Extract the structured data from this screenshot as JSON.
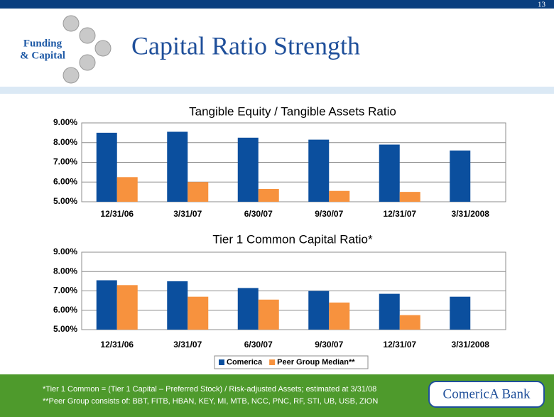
{
  "page_number": "13",
  "section": [
    "Funding",
    "& Capital"
  ],
  "title": "Capital Ratio Strength",
  "chart_data": [
    {
      "type": "bar",
      "title": "Tangible Equity / Tangible Assets Ratio",
      "categories": [
        "12/31/06",
        "3/31/07",
        "6/30/07",
        "9/30/07",
        "12/31/07",
        "3/31/2008"
      ],
      "series": [
        {
          "color": "#0b4f9e",
          "values": [
            8.5,
            8.55,
            8.25,
            8.15,
            7.9,
            7.6
          ]
        },
        {
          "color": "#f7923e",
          "values": [
            6.25,
            6.0,
            5.65,
            5.55,
            5.5,
            null
          ]
        }
      ],
      "ylim": [
        5,
        9
      ],
      "yticks": [
        {
          "value": 5,
          "label": "5.00%"
        },
        {
          "value": 6,
          "label": "6.00%"
        },
        {
          "value": 7,
          "label": "7.00%"
        },
        {
          "value": 8,
          "label": "8.00%"
        },
        {
          "value": 9,
          "label": "9.00%"
        }
      ],
      "grid": true,
      "legend": false
    },
    {
      "type": "bar",
      "title": "Tier 1 Common Capital Ratio*",
      "categories": [
        "12/31/06",
        "3/31/07",
        "6/30/07",
        "9/30/07",
        "12/31/07",
        "3/31/2008"
      ],
      "series": [
        {
          "name": "Comerica",
          "color": "#0b4f9e",
          "values": [
            7.55,
            7.5,
            7.15,
            7.0,
            6.85,
            6.7
          ]
        },
        {
          "name": "Peer Group Median**",
          "color": "#f7923e",
          "values": [
            7.3,
            6.7,
            6.55,
            6.4,
            5.75,
            null
          ]
        }
      ],
      "ylim": [
        5,
        9
      ],
      "yticks": [
        {
          "value": 5,
          "label": "5.00%"
        },
        {
          "value": 6,
          "label": "6.00%"
        },
        {
          "value": 7,
          "label": "7.00%"
        },
        {
          "value": 8,
          "label": "8.00%"
        },
        {
          "value": 9,
          "label": "9.00%"
        }
      ],
      "grid": true,
      "legend": true
    }
  ],
  "footnotes": [
    "*Tier 1 Common = (Tier 1 Capital – Preferred Stock) / Risk-adjusted Assets; estimated at 3/31/08",
    "**Peer Group consists of: BBT, FITB, HBAN, KEY, MI, MTB, NCC, PNC, RF, STI, UB, USB, ZION"
  ],
  "logo": "ComericA Bank"
}
